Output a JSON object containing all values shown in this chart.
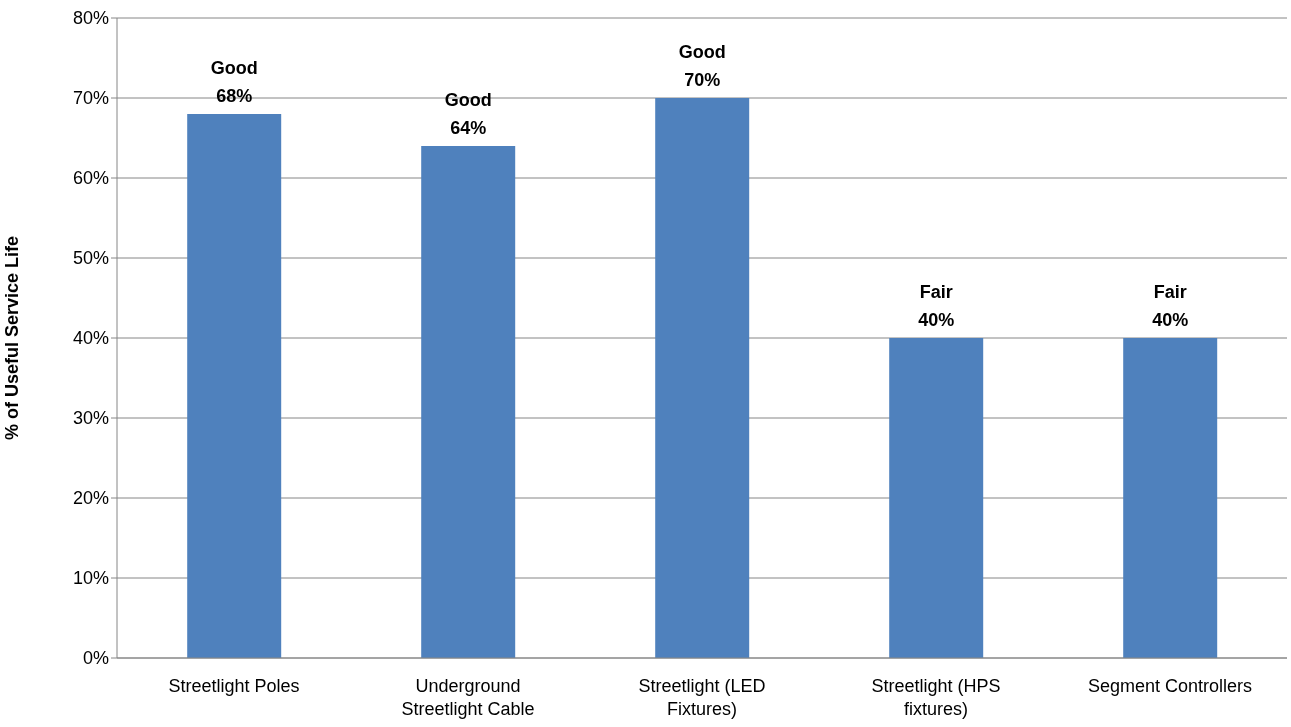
{
  "chart_data": {
    "type": "bar",
    "ylabel": "% of Useful Service Life",
    "categories": [
      "Streetlight Poles",
      "Underground Streetlight Cable",
      "Streetlight (LED Fixtures)",
      "Streetlight (HPS fixtures)",
      "Segment Controllers"
    ],
    "values": [
      68,
      64,
      70,
      40,
      40
    ],
    "value_labels": [
      "Good\n68%",
      "Good\n64%",
      "Good\n70%",
      "Fair\n40%",
      "Fair\n40%"
    ],
    "color": "#4f81bd",
    "ylim": [
      0,
      80
    ],
    "yticks": [
      {
        "value": 0,
        "label": "0%"
      },
      {
        "value": 10,
        "label": "10%"
      },
      {
        "value": 20,
        "label": "20%"
      },
      {
        "value": 30,
        "label": "30%"
      },
      {
        "value": 40,
        "label": "40%"
      },
      {
        "value": 50,
        "label": "50%"
      },
      {
        "value": 60,
        "label": "60%"
      },
      {
        "value": 70,
        "label": "70%"
      },
      {
        "value": 80,
        "label": "80%"
      }
    ],
    "grid": "y"
  }
}
